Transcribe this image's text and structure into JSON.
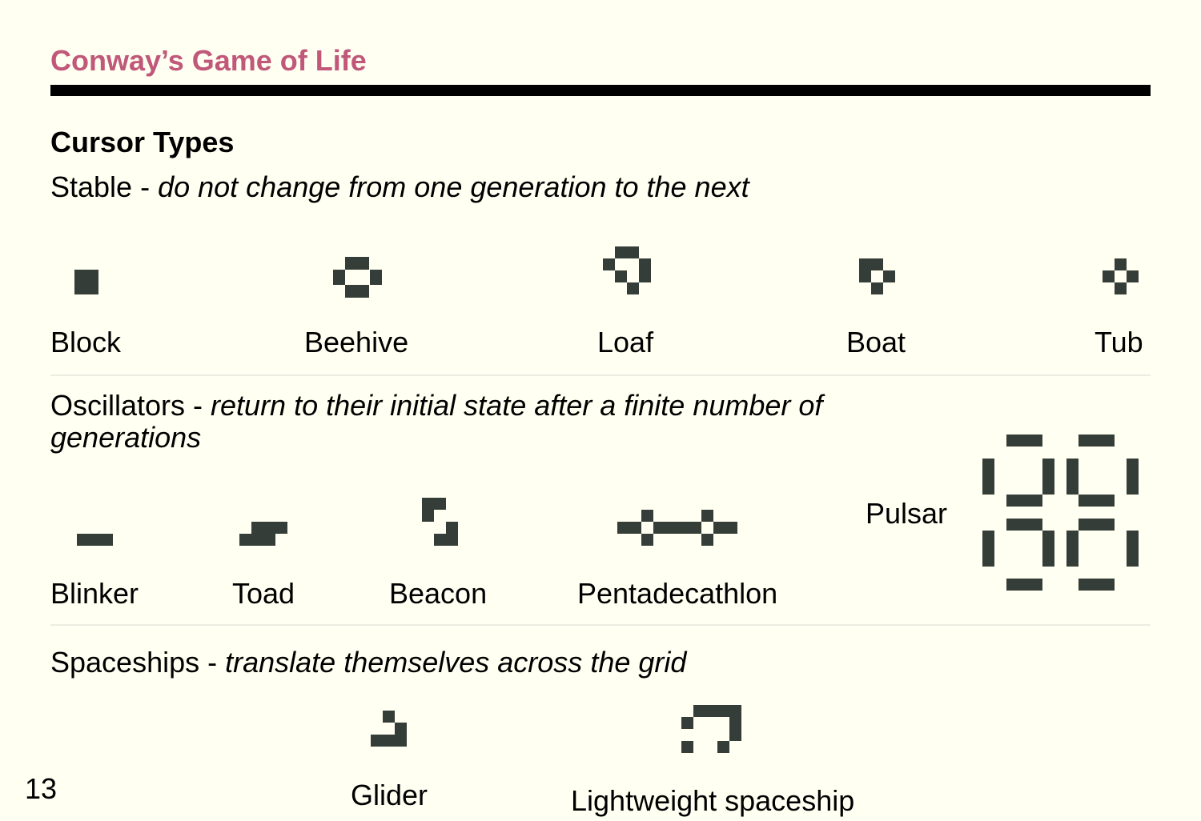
{
  "header": {
    "title": "Conway’s Game of Life"
  },
  "page_heading": "Cursor Types",
  "sections": {
    "stable": {
      "name": "Stable",
      "separator": " - ",
      "description": "do not change from one generation to the next",
      "patterns": {
        "block": "Block",
        "beehive": "Beehive",
        "loaf": "Loaf",
        "boat": "Boat",
        "tub": "Tub"
      }
    },
    "oscillators": {
      "name": "Oscillators",
      "separator": " - ",
      "description_line1": "return to their initial state after a finite number of",
      "description_line2": "generations",
      "patterns": {
        "blinker": "Blinker",
        "toad": "Toad",
        "beacon": "Beacon",
        "pentadecathlon": "Pentadecathlon",
        "pulsar": "Pulsar"
      }
    },
    "spaceships": {
      "name": "Spaceships",
      "separator": " - ",
      "description": "translate themselves across the grid",
      "patterns": {
        "glider": "Glider",
        "lwss": "Lightweight spaceship"
      }
    }
  },
  "footer": {
    "page_number": "13"
  },
  "colors": {
    "background": "#fffff2",
    "title": "#c0587a",
    "cell": "#353d38",
    "separator": "#ecece2"
  }
}
